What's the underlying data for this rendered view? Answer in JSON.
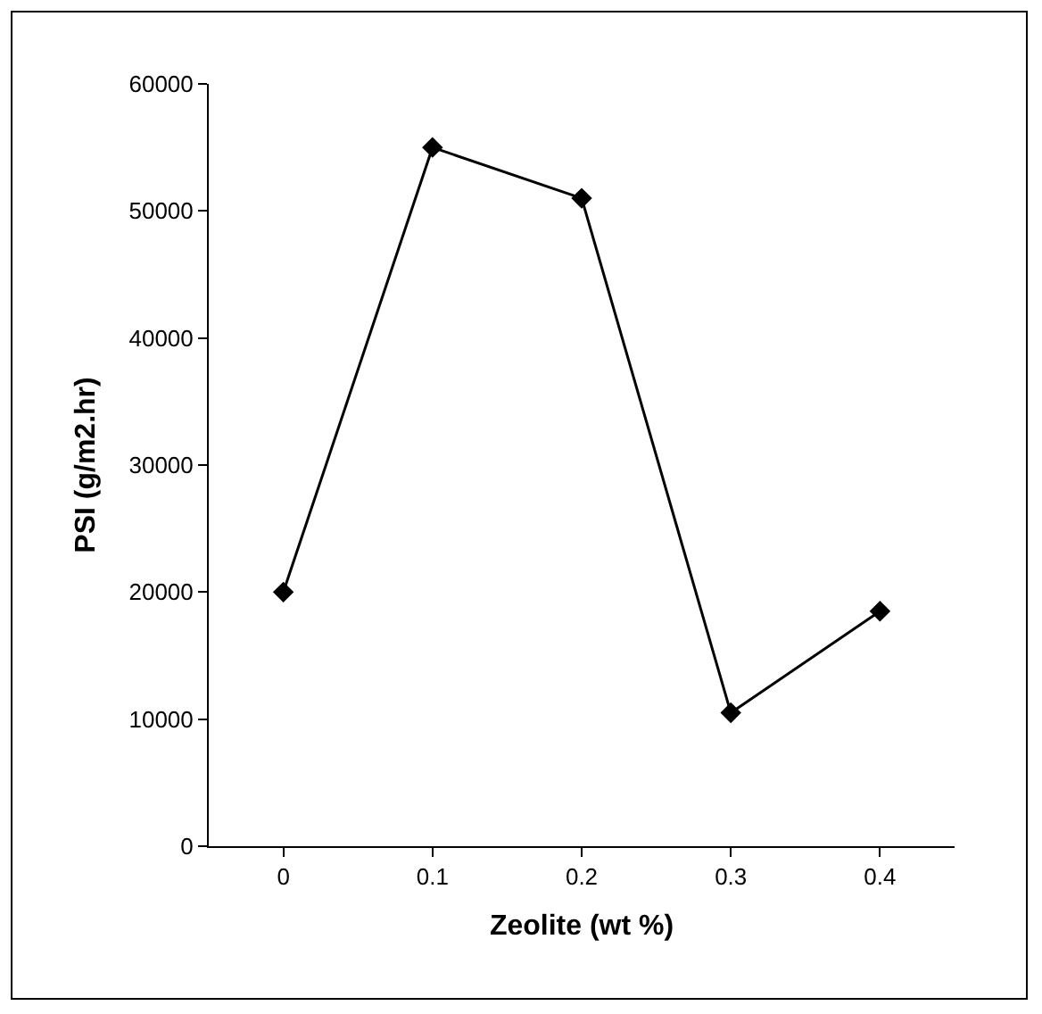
{
  "chart_data": {
    "type": "line",
    "xlabel": "Zeolite (wt %)",
    "ylabel": "PSI (g/m2.hr)",
    "categories": [
      "0",
      "0.1",
      "0.2",
      "0.3",
      "0.4"
    ],
    "series": [
      {
        "color": "#000000",
        "values": [
          20000,
          55000,
          51000,
          10500,
          18500
        ]
      }
    ],
    "ylim": [
      0,
      60000
    ],
    "yticks": [
      0,
      10000,
      20000,
      30000,
      40000,
      50000,
      60000
    ],
    "grid": false,
    "marker": "diamond",
    "line_style": "solid"
  }
}
